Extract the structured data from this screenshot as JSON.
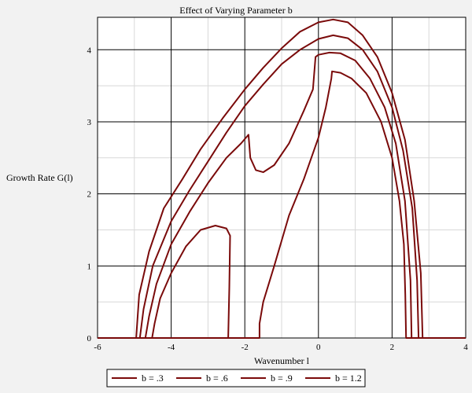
{
  "chart_data": {
    "type": "line",
    "title": "Effect of Varying Parameter b",
    "xlabel": "Wavenumber l",
    "ylabel": "Growth Rate G(l)",
    "xlim": [
      -6,
      4
    ],
    "ylim": [
      0,
      4.45
    ],
    "xticks": [
      -6,
      -4,
      -2,
      0,
      2,
      4
    ],
    "yticks": [
      0,
      1,
      2,
      3,
      4
    ],
    "xtick_labels": [
      "-6",
      "-4",
      "-2",
      "0",
      "2",
      "4"
    ],
    "ytick_labels": [
      "0",
      "1",
      "2",
      "3",
      "4"
    ],
    "grid": true,
    "legend_position": "bottom",
    "line_color": "#7a0a0a",
    "series": [
      {
        "name": "b = .3",
        "points": [
          [
            -6,
            0
          ],
          [
            -2.45,
            0
          ],
          [
            -2.42,
            0.7
          ],
          [
            -2.4,
            1.42
          ],
          [
            -2.5,
            1.52
          ],
          [
            -2.8,
            1.56
          ],
          [
            -3.2,
            1.5
          ],
          [
            -3.6,
            1.27
          ],
          [
            -4.0,
            0.9
          ],
          [
            -4.3,
            0.55
          ],
          [
            -4.45,
            0.2
          ],
          [
            -4.52,
            0
          ],
          [
            -6,
            0
          ],
          [
            -1.6,
            0
          ],
          [
            -1.6,
            0.2
          ],
          [
            -1.5,
            0.5
          ],
          [
            -1.2,
            1.0
          ],
          [
            -0.8,
            1.7
          ],
          [
            -0.4,
            2.2
          ],
          [
            0,
            2.78
          ],
          [
            0.2,
            3.2
          ],
          [
            0.35,
            3.6
          ],
          [
            0.37,
            3.7
          ],
          [
            0.6,
            3.68
          ],
          [
            0.9,
            3.6
          ],
          [
            1.3,
            3.4
          ],
          [
            1.7,
            3.0
          ],
          [
            2.0,
            2.5
          ],
          [
            2.2,
            1.9
          ],
          [
            2.32,
            1.3
          ],
          [
            2.36,
            0.6
          ],
          [
            2.38,
            0
          ],
          [
            4,
            0
          ]
        ]
      },
      {
        "name": "b = .6",
        "points": [
          [
            -4.7,
            0
          ],
          [
            -4.6,
            0.3
          ],
          [
            -4.4,
            0.75
          ],
          [
            -4.0,
            1.3
          ],
          [
            -3.5,
            1.75
          ],
          [
            -3.0,
            2.15
          ],
          [
            -2.5,
            2.5
          ],
          [
            -2.1,
            2.7
          ],
          [
            -1.9,
            2.82
          ],
          [
            -1.85,
            2.5
          ],
          [
            -1.7,
            2.33
          ],
          [
            -1.5,
            2.3
          ],
          [
            -1.2,
            2.4
          ],
          [
            -0.8,
            2.7
          ],
          [
            -0.4,
            3.15
          ],
          [
            -0.15,
            3.45
          ],
          [
            -0.08,
            3.9
          ],
          [
            0,
            3.93
          ],
          [
            0.3,
            3.96
          ],
          [
            0.6,
            3.95
          ],
          [
            1.0,
            3.85
          ],
          [
            1.4,
            3.6
          ],
          [
            1.8,
            3.2
          ],
          [
            2.1,
            2.7
          ],
          [
            2.35,
            1.9
          ],
          [
            2.5,
            0.8
          ],
          [
            2.53,
            0
          ],
          [
            4,
            0
          ]
        ]
      },
      {
        "name": "b = .9",
        "points": [
          [
            -4.85,
            0
          ],
          [
            -4.75,
            0.4
          ],
          [
            -4.5,
            1.0
          ],
          [
            -4.0,
            1.62
          ],
          [
            -3.5,
            2.05
          ],
          [
            -3.0,
            2.45
          ],
          [
            -2.5,
            2.85
          ],
          [
            -2.0,
            3.22
          ],
          [
            -1.5,
            3.52
          ],
          [
            -1.0,
            3.8
          ],
          [
            -0.5,
            4.0
          ],
          [
            0,
            4.15
          ],
          [
            0.4,
            4.2
          ],
          [
            0.8,
            4.16
          ],
          [
            1.2,
            4.0
          ],
          [
            1.6,
            3.7
          ],
          [
            2.0,
            3.2
          ],
          [
            2.3,
            2.6
          ],
          [
            2.55,
            1.8
          ],
          [
            2.68,
            0.8
          ],
          [
            2.72,
            0
          ],
          [
            4,
            0
          ]
        ]
      },
      {
        "name": "b = 1.2",
        "points": [
          [
            -4.95,
            0
          ],
          [
            -4.87,
            0.6
          ],
          [
            -4.6,
            1.2
          ],
          [
            -4.2,
            1.8
          ],
          [
            -3.7,
            2.2
          ],
          [
            -3.2,
            2.62
          ],
          [
            -2.6,
            3.05
          ],
          [
            -2.0,
            3.45
          ],
          [
            -1.5,
            3.75
          ],
          [
            -1.0,
            4.02
          ],
          [
            -0.5,
            4.25
          ],
          [
            0,
            4.38
          ],
          [
            0.4,
            4.42
          ],
          [
            0.8,
            4.38
          ],
          [
            1.2,
            4.2
          ],
          [
            1.6,
            3.9
          ],
          [
            2.0,
            3.4
          ],
          [
            2.35,
            2.75
          ],
          [
            2.6,
            1.9
          ],
          [
            2.78,
            0.9
          ],
          [
            2.83,
            0
          ],
          [
            4,
            0
          ]
        ]
      }
    ]
  }
}
